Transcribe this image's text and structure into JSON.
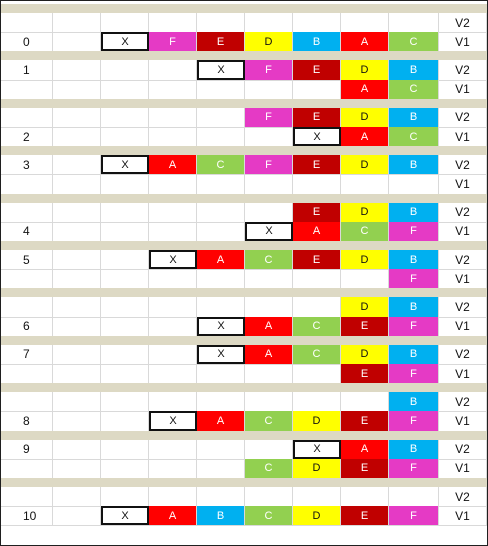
{
  "colors": {
    "F": "#e53ac5",
    "E": "#c00000",
    "D": "#ffff00",
    "B": "#00b0f0",
    "A": "#ff0000",
    "C": "#92d050",
    "X": "#ffffff",
    "separator": "#ddd9c4",
    "gridline": "#d9d9d9"
  },
  "rows": [
    {
      "type": "sep"
    },
    {
      "num": "",
      "ver": "V2",
      "cells": {}
    },
    {
      "num": "0",
      "ver": "V1",
      "cells": {
        "2": "X",
        "3": "F",
        "4": "E",
        "5": "D",
        "6": "B",
        "7": "A",
        "8": "C"
      }
    },
    {
      "type": "sep"
    },
    {
      "num": "1",
      "ver": "V2",
      "cells": {
        "4": "X",
        "5": "F",
        "6": "E",
        "7": "D",
        "8": "B"
      }
    },
    {
      "num": "",
      "ver": "V1",
      "cells": {
        "7": "A",
        "8": "C"
      }
    },
    {
      "type": "sep"
    },
    {
      "num": "",
      "ver": "V2",
      "cells": {
        "5": "F",
        "6": "E",
        "7": "D",
        "8": "B"
      }
    },
    {
      "num": "2",
      "ver": "V1",
      "cells": {
        "6": "X",
        "7": "A",
        "8": "C"
      }
    },
    {
      "type": "sep"
    },
    {
      "num": "3",
      "ver": "V2",
      "cells": {
        "2": "X",
        "3": "A",
        "4": "C",
        "5": "F",
        "6": "E",
        "7": "D",
        "8": "B"
      }
    },
    {
      "num": "",
      "ver": "V1",
      "cells": {}
    },
    {
      "type": "sep"
    },
    {
      "num": "",
      "ver": "V2",
      "cells": {
        "6": "E",
        "7": "D",
        "8": "B"
      }
    },
    {
      "num": "4",
      "ver": "V1",
      "cells": {
        "5": "X",
        "6": "A",
        "7": "C",
        "8": "F"
      }
    },
    {
      "type": "sep"
    },
    {
      "num": "5",
      "ver": "V2",
      "cells": {
        "3": "X",
        "4": "A",
        "5": "C",
        "6": "E",
        "7": "D",
        "8": "B"
      }
    },
    {
      "num": "",
      "ver": "V1",
      "cells": {
        "8": "F"
      }
    },
    {
      "type": "sep"
    },
    {
      "num": "",
      "ver": "V2",
      "cells": {
        "7": "D",
        "8": "B"
      }
    },
    {
      "num": "6",
      "ver": "V1",
      "cells": {
        "4": "X",
        "5": "A",
        "6": "C",
        "7": "E",
        "8": "F"
      }
    },
    {
      "type": "sep"
    },
    {
      "num": "7",
      "ver": "V2",
      "cells": {
        "4": "X",
        "5": "A",
        "6": "C",
        "7": "D",
        "8": "B"
      }
    },
    {
      "num": "",
      "ver": "V1",
      "cells": {
        "7": "E",
        "8": "F"
      }
    },
    {
      "type": "sep"
    },
    {
      "num": "",
      "ver": "V2",
      "cells": {
        "8": "B"
      }
    },
    {
      "num": "8",
      "ver": "V1",
      "cells": {
        "3": "X",
        "4": "A",
        "5": "C",
        "6": "D",
        "7": "E",
        "8": "F"
      }
    },
    {
      "type": "sep"
    },
    {
      "num": "9",
      "ver": "V2",
      "cells": {
        "6": "X",
        "7": "A",
        "8": "B"
      }
    },
    {
      "num": "",
      "ver": "V1",
      "cells": {
        "5": "C",
        "6": "D",
        "7": "E",
        "8": "F"
      }
    },
    {
      "type": "sep"
    },
    {
      "num": "",
      "ver": "V2",
      "cells": {}
    },
    {
      "num": "10",
      "ver": "V1",
      "cells": {
        "2": "X",
        "3": "A",
        "4": "B",
        "5": "C",
        "6": "D",
        "7": "E",
        "8": "F"
      }
    }
  ]
}
